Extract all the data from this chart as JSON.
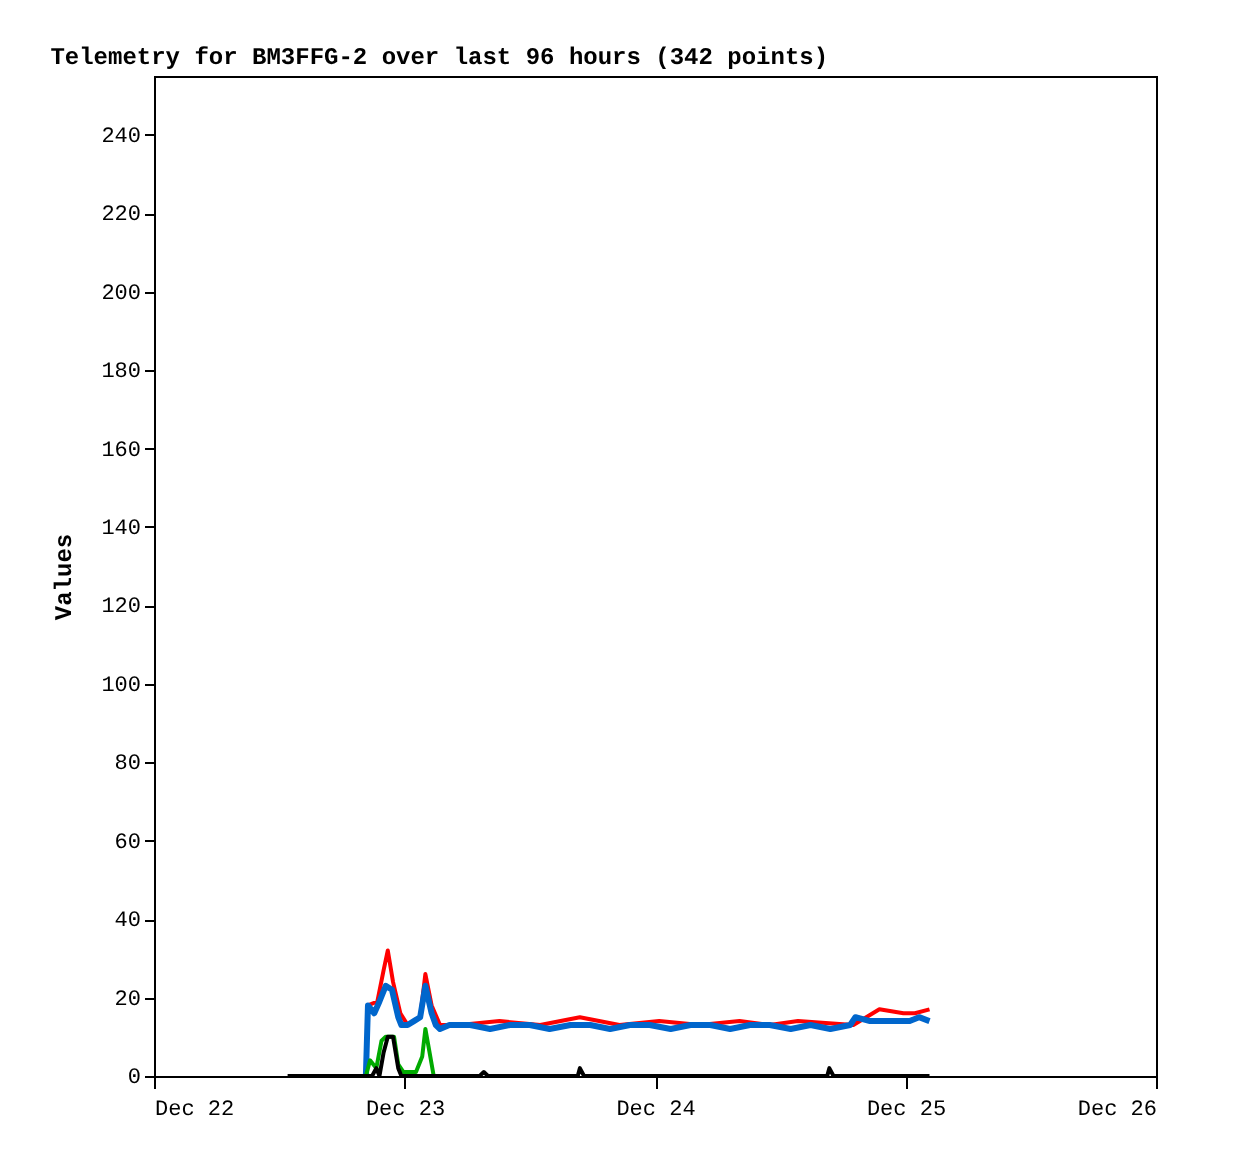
{
  "chart_data": {
    "type": "line",
    "title": "Telemetry for BM3FFG-2 over last 96 hours (342 points)",
    "ylabel": "Values",
    "xlim": [
      "--12-22",
      "--12-26"
    ],
    "xticks": [
      {
        "value": "--12-22",
        "label": "Dec 22"
      },
      {
        "value": "--12-23",
        "label": "Dec 23"
      },
      {
        "value": "--12-24",
        "label": "Dec 24"
      },
      {
        "value": "--12-25",
        "label": "Dec 25"
      },
      {
        "value": "--12-26",
        "label": "Dec 26"
      }
    ],
    "ylim": [
      0,
      255
    ],
    "yticks": [
      0,
      20,
      40,
      60,
      80,
      100,
      120,
      140,
      160,
      180,
      200,
      220,
      240
    ],
    "grid": false,
    "marker": "none",
    "line_style": "solid",
    "series": [
      {
        "color": "#ff0000",
        "x": [
          "--12-22T20:18",
          "--12-22T20:30",
          "--12-22T21:24",
          "--12-22T22:00",
          "--12-22T22:24",
          "--12-22T22:54",
          "--12-22T23:36",
          "--12-23T00:18",
          "--12-23T01:30",
          "--12-23T02:00",
          "--12-23T02:36",
          "--12-23T03:24",
          "--12-23T05:18",
          "--12-23T09:06",
          "--12-23T13:00",
          "--12-23T16:48",
          "--12-23T20:36",
          "--12-24T00:24",
          "--12-24T04:18",
          "--12-24T08:06",
          "--12-24T11:00",
          "--12-24T13:42",
          "--12-24T19:00",
          "--12-24T21:30",
          "--12-24T23:48",
          "--12-25T00:54",
          "--12-25T02:18"
        ],
        "values": [
          0,
          18,
          19,
          27,
          32,
          24,
          16,
          13,
          15,
          26,
          18,
          13,
          13,
          14,
          13,
          15,
          13,
          14,
          13,
          14,
          13,
          14,
          13,
          17,
          16,
          16,
          17
        ]
      },
      {
        "color": "#0066cc",
        "x": [
          "--12-22T20:18",
          "--12-22T20:30",
          "--12-22T21:06",
          "--12-22T21:36",
          "--12-22T22:12",
          "--12-22T22:48",
          "--12-22T23:24",
          "--12-22T23:42",
          "--12-23T00:18",
          "--12-23T00:54",
          "--12-23T01:30",
          "--12-23T02:00",
          "--12-23T02:36",
          "--12-23T03:00",
          "--12-23T03:24",
          "--12-23T04:18",
          "--12-23T06:18",
          "--12-23T08:12",
          "--12-23T10:06",
          "--12-23T12:00",
          "--12-23T13:54",
          "--12-23T15:54",
          "--12-23T17:48",
          "--12-23T19:42",
          "--12-23T21:36",
          "--12-23T23:30",
          "--12-24T01:30",
          "--12-24T03:24",
          "--12-24T05:18",
          "--12-24T07:12",
          "--12-24T09:06",
          "--12-24T11:00",
          "--12-24T13:00",
          "--12-24T14:54",
          "--12-24T16:48",
          "--12-24T18:42",
          "--12-24T19:12",
          "--12-24T20:36",
          "--12-24T22:30",
          "--12-25T00:24",
          "--12-25T01:18",
          "--12-25T02:18"
        ],
        "values": [
          0,
          18,
          16,
          19,
          23,
          22,
          15,
          13,
          13,
          14,
          15,
          23,
          16,
          13,
          12,
          13,
          13,
          12,
          13,
          13,
          12,
          13,
          13,
          12,
          13,
          13,
          12,
          13,
          13,
          12,
          13,
          13,
          12,
          13,
          12,
          13,
          15,
          14,
          14,
          14,
          15,
          14
        ]
      },
      {
        "color": "#00aa00",
        "x": [
          "--12-22T20:18",
          "--12-22T20:42",
          "--12-22T21:18",
          "--12-22T21:48",
          "--12-22T22:12",
          "--12-22T23:00",
          "--12-22T23:24",
          "--12-22T23:54",
          "--12-23T01:06",
          "--12-23T01:42",
          "--12-23T02:00",
          "--12-23T02:24",
          "--12-23T02:48"
        ],
        "values": [
          0,
          4,
          2,
          9,
          10,
          10,
          3,
          1,
          1,
          5,
          12,
          6,
          0
        ]
      },
      {
        "color": "#000000",
        "x": [
          "--12-22T12:48",
          "--12-22T20:54",
          "--12-22T21:18",
          "--12-22T21:36",
          "--12-22T22:00",
          "--12-22T22:24",
          "--12-22T22:54",
          "--12-22T23:24",
          "--12-22T23:42",
          "--12-23T07:12",
          "--12-23T07:36",
          "--12-23T08:00",
          "--12-23T16:36",
          "--12-23T16:48",
          "--12-23T17:12",
          "--12-24T16:30",
          "--12-24T16:42",
          "--12-24T17:06",
          "--12-25T02:18"
        ],
        "values": [
          0,
          0,
          2,
          0,
          6,
          10,
          10,
          2,
          0,
          0,
          1,
          0,
          0,
          2,
          0,
          0,
          2,
          0,
          0
        ]
      }
    ]
  }
}
